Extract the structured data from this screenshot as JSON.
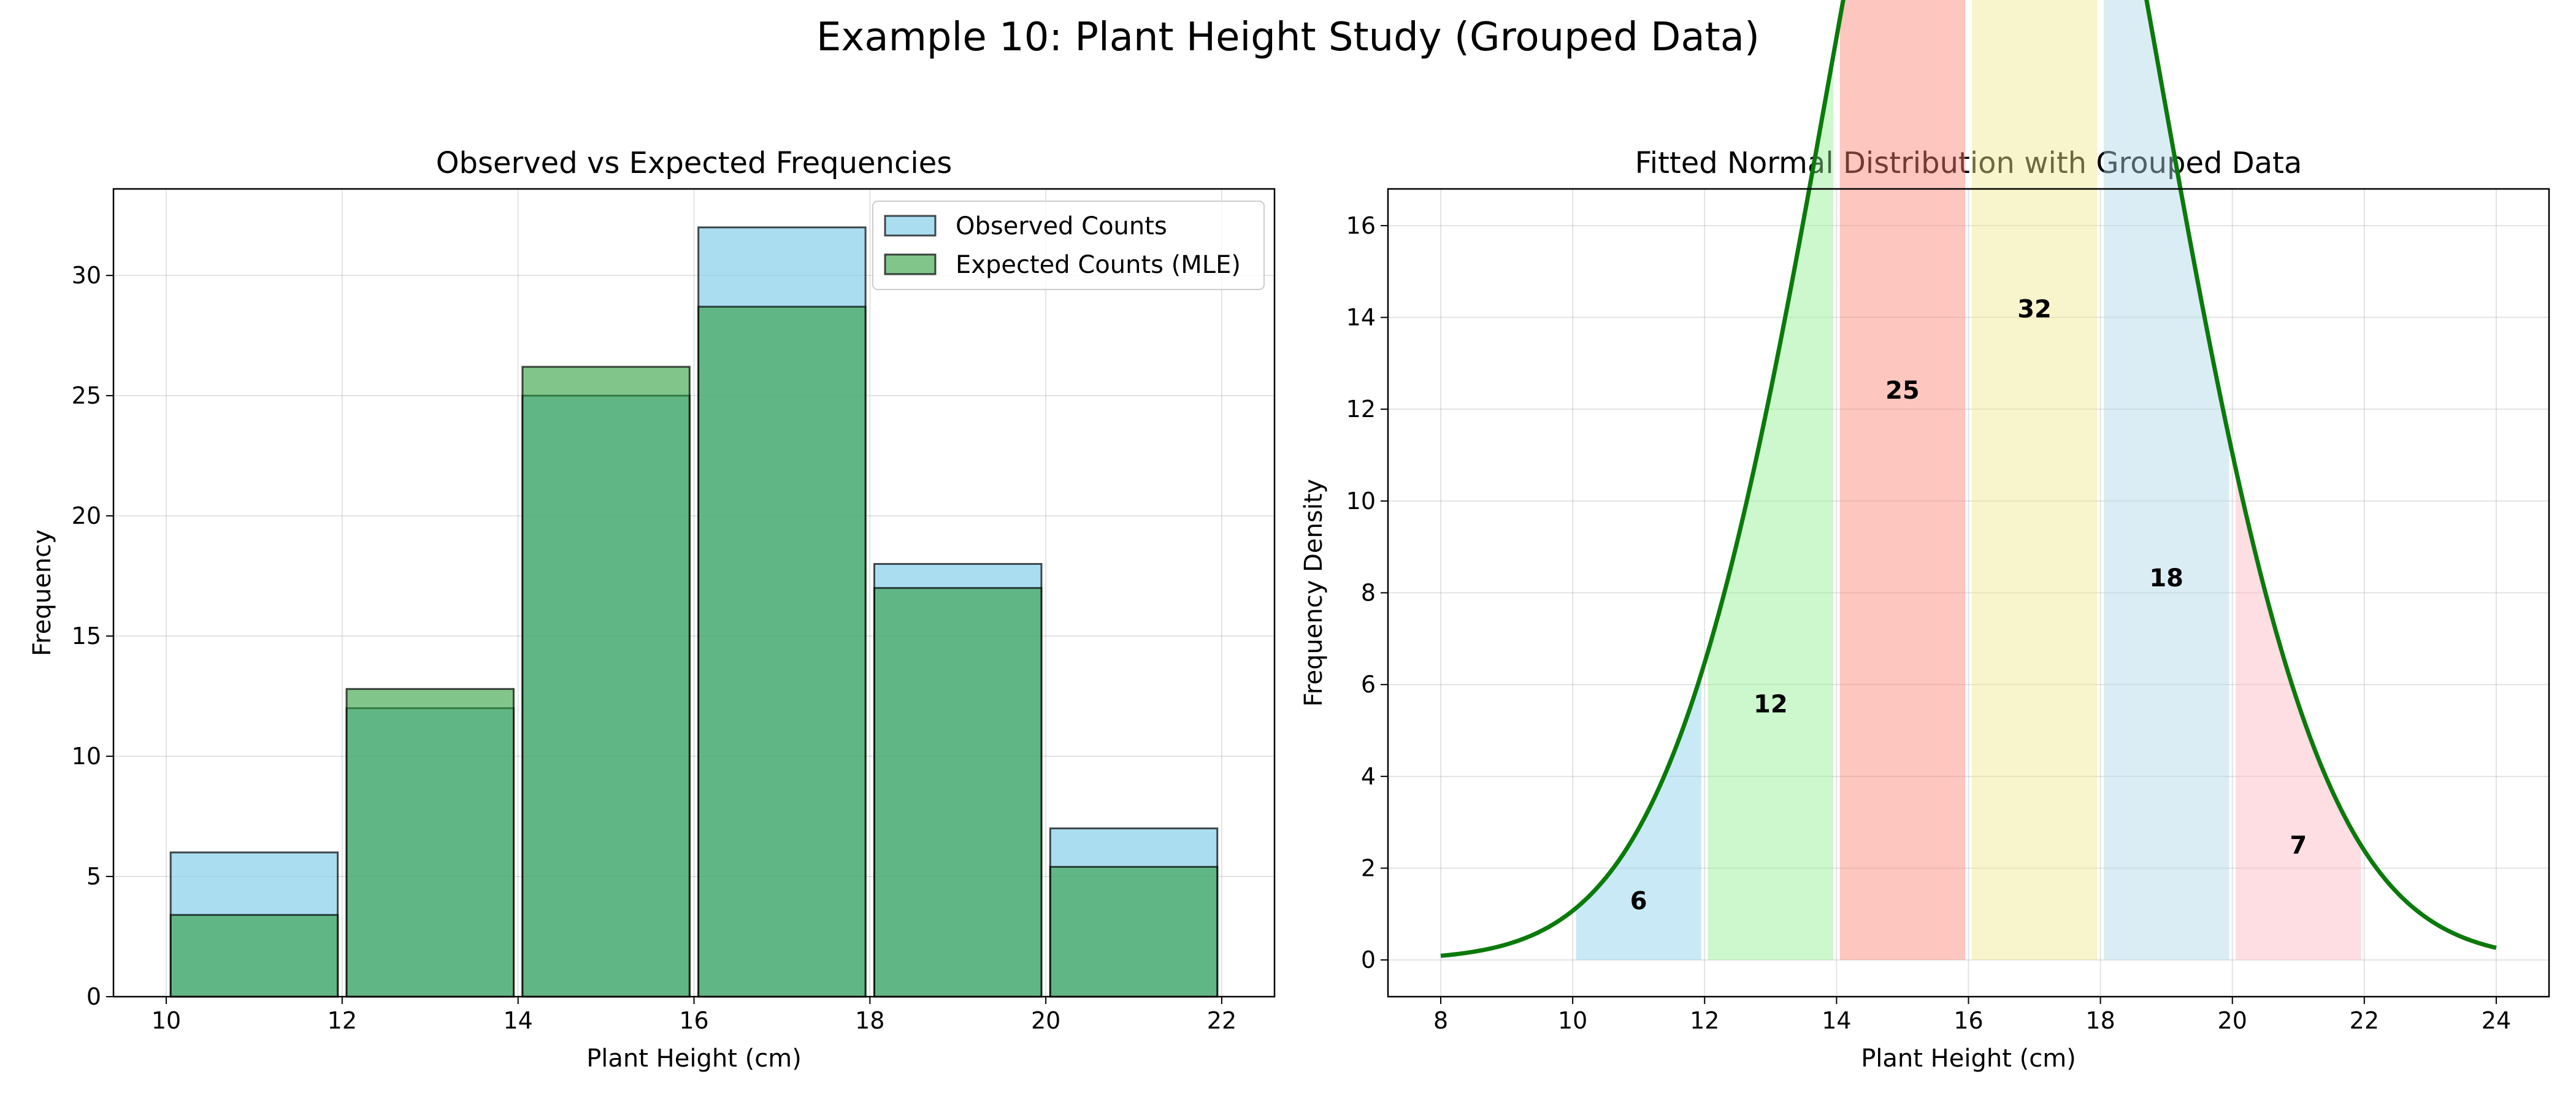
{
  "suptitle": "Example 10: Plant Height Study (Grouped Data)",
  "chart_data": [
    {
      "type": "bar",
      "title": "Observed vs Expected Frequencies",
      "xlabel": "Plant Height (cm)",
      "ylabel": "Frequency",
      "xlim": [
        9.4,
        22.6
      ],
      "ylim": [
        0,
        33.6
      ],
      "xticks": [
        10,
        12,
        14,
        16,
        18,
        20,
        22
      ],
      "yticks": [
        0,
        5,
        10,
        15,
        20,
        25,
        30
      ],
      "grid": true,
      "legend_position": "top-right",
      "bins": [
        [
          10,
          12
        ],
        [
          12,
          14
        ],
        [
          14,
          16
        ],
        [
          16,
          18
        ],
        [
          18,
          20
        ],
        [
          20,
          22
        ]
      ],
      "series": [
        {
          "name": "Observed Counts",
          "values": [
            6,
            12,
            25,
            32,
            18,
            7
          ],
          "color": "#87ceeb"
        },
        {
          "name": "Expected Counts (MLE)",
          "values": [
            3.4,
            12.8,
            26.2,
            28.7,
            17.0,
            5.4
          ],
          "color": "#2e9e3e"
        }
      ]
    },
    {
      "type": "area",
      "title": "Fitted Normal Distribution with Grouped Data",
      "xlabel": "Plant Height (cm)",
      "ylabel": "Frequency Density",
      "xlim": [
        7.2,
        24.8
      ],
      "ylim": [
        -0.8,
        16.8
      ],
      "xticks": [
        8,
        10,
        12,
        14,
        16,
        18,
        20,
        22,
        24
      ],
      "yticks": [
        0,
        2,
        4,
        6,
        8,
        10,
        12,
        14,
        16
      ],
      "grid": true,
      "curve": {
        "mean": 16.4,
        "sd": 2.45,
        "n": 100,
        "x_range": [
          8,
          24
        ],
        "color": "#0a7a0a"
      },
      "groups": [
        {
          "range": [
            10,
            12
          ],
          "count": 6,
          "color": "#87ceeb"
        },
        {
          "range": [
            12,
            14
          ],
          "count": 12,
          "color": "#90ee90"
        },
        {
          "range": [
            14,
            16
          ],
          "count": 25,
          "color": "#fa8072"
        },
        {
          "range": [
            16,
            18
          ],
          "count": 32,
          "color": "#f0e68c"
        },
        {
          "range": [
            18,
            20
          ],
          "count": 18,
          "color": "#add8e6"
        },
        {
          "range": [
            20,
            22
          ],
          "count": 7,
          "color": "#ffb6c1"
        }
      ]
    }
  ]
}
